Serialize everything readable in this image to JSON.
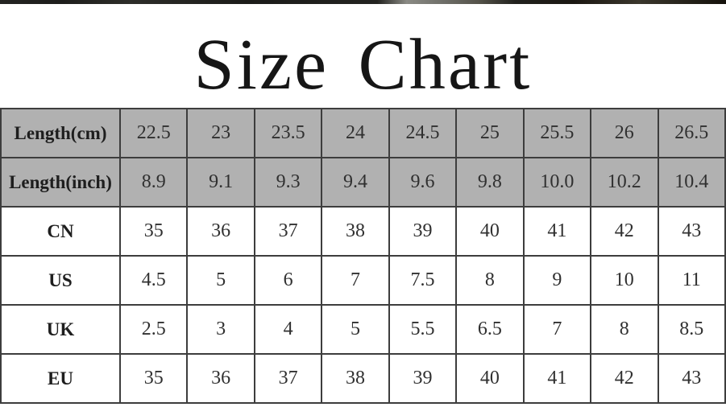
{
  "title": "Size Chart",
  "chart_data": {
    "type": "table",
    "title": "Size Chart",
    "rows": [
      {
        "label": "Length(cm)",
        "shaded": true,
        "values": [
          "22.5",
          "23",
          "23.5",
          "24",
          "24.5",
          "25",
          "25.5",
          "26",
          "26.5"
        ]
      },
      {
        "label": "Length(inch)",
        "shaded": true,
        "values": [
          "8.9",
          "9.1",
          "9.3",
          "9.4",
          "9.6",
          "9.8",
          "10.0",
          "10.2",
          "10.4"
        ]
      },
      {
        "label": "CN",
        "shaded": false,
        "values": [
          "35",
          "36",
          "37",
          "38",
          "39",
          "40",
          "41",
          "42",
          "43"
        ]
      },
      {
        "label": "US",
        "shaded": false,
        "values": [
          "4.5",
          "5",
          "6",
          "7",
          "7.5",
          "8",
          "9",
          "10",
          "11"
        ]
      },
      {
        "label": "UK",
        "shaded": false,
        "values": [
          "2.5",
          "3",
          "4",
          "5",
          "5.5",
          "6.5",
          "7",
          "8",
          "8.5"
        ]
      },
      {
        "label": "EU",
        "shaded": false,
        "values": [
          "35",
          "36",
          "37",
          "38",
          "39",
          "40",
          "41",
          "42",
          "43"
        ]
      }
    ]
  },
  "colors": {
    "shaded_row_bg": "#b1b1b1",
    "table_border": "#3d3d3d",
    "title_text": "#161616",
    "cell_text": "#303030",
    "page_bg": "#ffffff",
    "photo_edge_dark": "#1d1d1b",
    "photo_edge_light": "#8a8a84"
  }
}
